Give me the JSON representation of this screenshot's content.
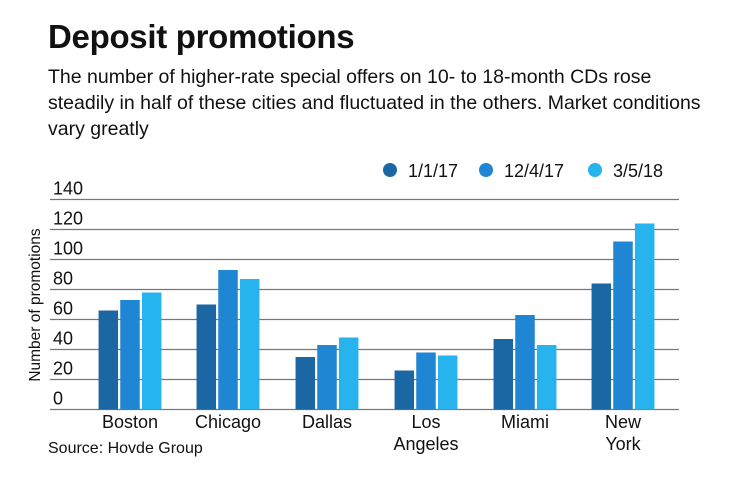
{
  "title": "Deposit promotions",
  "subtitle": "The number of higher-rate special offers on 10- to 18-month CDs rose steadily in half of these cities and fluctuated in the others. Market conditions vary greatly",
  "source": "Source: Hovde Group",
  "chart_data": {
    "type": "bar",
    "title": "Deposit promotions",
    "ylabel": "Number of promotions",
    "xlabel": "",
    "ylim": [
      0,
      140
    ],
    "yticks": [
      0,
      20,
      40,
      60,
      80,
      100,
      120,
      140
    ],
    "grid": true,
    "legend": "top-right",
    "categories": [
      [
        "Boston"
      ],
      [
        "Chicago"
      ],
      [
        "Dallas"
      ],
      [
        "Los",
        "Angeles"
      ],
      [
        "Miami"
      ],
      [
        "New",
        "York"
      ]
    ],
    "series": [
      {
        "name": "1/1/17",
        "color": "#1b67a3",
        "values": [
          66,
          70,
          35,
          26,
          47,
          84
        ]
      },
      {
        "name": "12/4/17",
        "color": "#1e86d2",
        "values": [
          73,
          93,
          43,
          38,
          63,
          112
        ]
      },
      {
        "name": "3/5/18",
        "color": "#27b3ee",
        "values": [
          78,
          87,
          48,
          36,
          43,
          124
        ]
      }
    ]
  }
}
